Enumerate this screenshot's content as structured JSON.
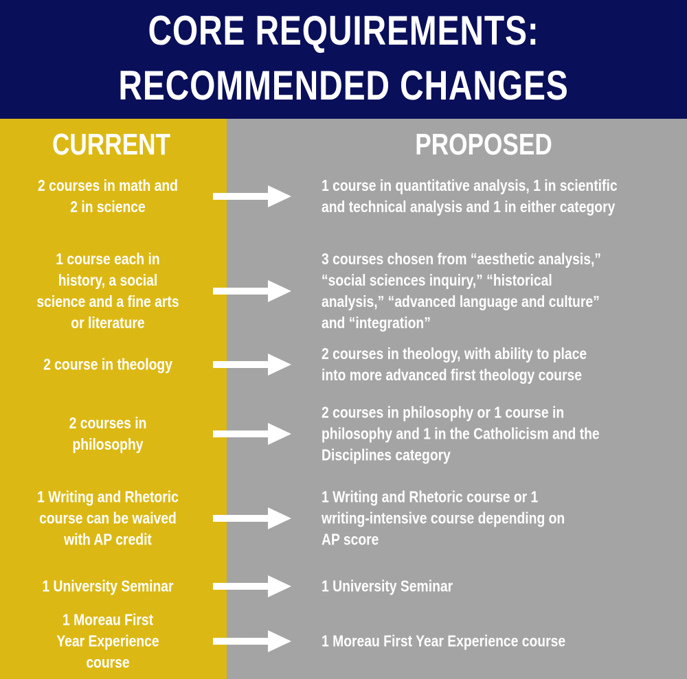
{
  "title": {
    "line1": "CORE REQUIREMENTS:",
    "line2": "RECOMMENDED CHANGES"
  },
  "columns": {
    "current": "CURRENT",
    "proposed": "PROPOSED"
  },
  "colors": {
    "header": "#0a0f5a",
    "current_bg": "#dcb814",
    "proposed_bg": "#a4a4a4",
    "text": "#ffffff"
  },
  "rows": [
    {
      "current": "2 courses in math and\n2 in science",
      "proposed": "1 course in quantitative analysis, 1 in scientific\nand technical analysis and 1 in either category"
    },
    {
      "current": "1 course each in\nhistory, a social\nscience and a fine arts\nor literature",
      "proposed": "3 courses chosen from “aesthetic analysis,”\n“social sciences inquiry,” “historical\nanalysis,” “advanced language and culture”\nand “integration”"
    },
    {
      "current": "2 course in theology",
      "proposed": "2 courses in theology, with ability to place\ninto more advanced first theology course"
    },
    {
      "current": "2 courses in\nphilosophy",
      "proposed": "2 courses in philosophy or 1 course in\nphilosophy and 1 in the Catholicism and the\nDisciplines category"
    },
    {
      "current": "1 Writing and Rhetoric\ncourse can be waived\nwith AP credit",
      "proposed": "1 Writing and Rhetoric course or 1\nwriting-intensive course depending on\nAP score"
    },
    {
      "current": "1 University Seminar",
      "proposed": "1 University Seminar"
    },
    {
      "current": "1 Moreau First\nYear Experience\ncourse",
      "proposed": "1 Moreau First Year Experience course"
    }
  ]
}
